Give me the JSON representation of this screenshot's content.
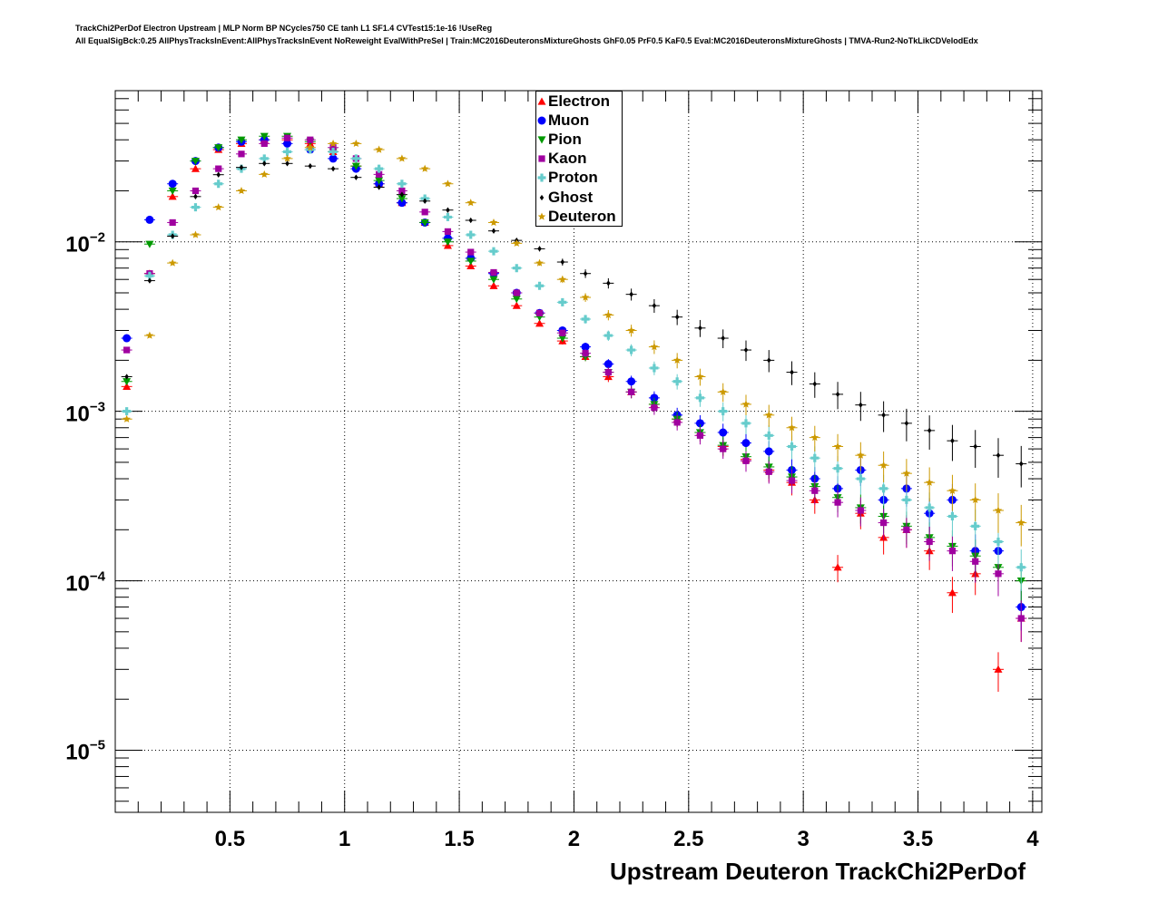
{
  "title_line1": "TrackChi2PerDof Electron Upstream | MLP Norm BP NCycles750 CE tanh L1 SF1.4 CVTest15:1e-16 !UseReg",
  "title_line2": "All EqualSigBck:0.25 AllPhysTracksInEvent:AllPhysTracksInEvent NoReweight EvalWithPreSel | Train:MC2016DeuteronsMixtureGhosts GhF0.05 PrF0.5 KaF0.5 Eval:MC2016DeuteronsMixtureGhosts | TMVA-Run2-NoTkLikCDVelodEdx",
  "chart_data": {
    "type": "scatter",
    "xlabel": "Upstream Deuteron TrackChi2PerDof",
    "ylabel": "",
    "xlim": [
      0,
      4.04
    ],
    "ylim": [
      4.3e-06,
      0.078
    ],
    "yscale": "log",
    "grid": true,
    "legend_position": "top-center",
    "x_ticks": [
      "0.5",
      "1",
      "1.5",
      "2",
      "2.5",
      "3",
      "3.5",
      "4"
    ],
    "x_tick_values": [
      0.5,
      1,
      1.5,
      2,
      2.5,
      3,
      3.5,
      4
    ],
    "y_ticks": [
      {
        "base": "10",
        "exp": "−2",
        "value": 0.01
      },
      {
        "base": "10",
        "exp": "−3",
        "value": 0.001
      },
      {
        "base": "10",
        "exp": "−4",
        "value": 0.0001
      },
      {
        "base": "10",
        "exp": "−5",
        "value": 1e-05
      }
    ],
    "x": [
      0.05,
      0.15,
      0.25,
      0.35,
      0.45,
      0.55,
      0.65,
      0.75,
      0.85,
      0.95,
      1.05,
      1.15,
      1.25,
      1.35,
      1.45,
      1.55,
      1.65,
      1.75,
      1.85,
      1.95,
      2.05,
      2.15,
      2.25,
      2.35,
      2.45,
      2.55,
      2.65,
      2.75,
      2.85,
      2.95,
      3.05,
      3.15,
      3.25,
      3.35,
      3.45,
      3.55,
      3.65,
      3.75,
      3.85,
      3.95
    ],
    "series": [
      {
        "name": "Electron",
        "color": "#ff0000",
        "marker": "triangle-up",
        "values": [
          0.0014,
          0.0065,
          0.0185,
          0.027,
          0.035,
          0.038,
          0.04,
          0.04,
          0.038,
          0.034,
          0.028,
          0.022,
          0.017,
          0.013,
          0.0095,
          0.0072,
          0.0055,
          0.0042,
          0.0033,
          0.0026,
          0.0021,
          0.0016,
          0.0013,
          0.0011,
          0.0009,
          0.00075,
          0.00062,
          0.00052,
          0.00045,
          0.00038,
          0.0003,
          0.00012,
          0.00025,
          0.00018,
          0.0002,
          0.00015,
          8.5e-05,
          0.00011,
          3e-05,
          6e-05
        ]
      },
      {
        "name": "Muon",
        "color": "#0000ff",
        "marker": "circle",
        "values": [
          0.0027,
          0.0135,
          0.022,
          0.03,
          0.036,
          0.039,
          0.04,
          0.038,
          0.035,
          0.031,
          0.027,
          0.022,
          0.017,
          0.013,
          0.0105,
          0.008,
          0.0065,
          0.005,
          0.0038,
          0.003,
          0.0024,
          0.0019,
          0.0015,
          0.0012,
          0.00095,
          0.00085,
          0.00075,
          0.00065,
          0.00058,
          0.00045,
          0.0004,
          0.00035,
          0.00045,
          0.0003,
          0.00035,
          0.00025,
          0.0003,
          0.00015,
          0.00015,
          7e-05
        ]
      },
      {
        "name": "Pion",
        "color": "#009900",
        "marker": "triangle-down",
        "values": [
          0.0015,
          0.0097,
          0.02,
          0.03,
          0.036,
          0.04,
          0.042,
          0.042,
          0.039,
          0.034,
          0.028,
          0.023,
          0.018,
          0.013,
          0.01,
          0.0077,
          0.006,
          0.0046,
          0.0036,
          0.0027,
          0.0021,
          0.0017,
          0.0013,
          0.0011,
          0.0009,
          0.00075,
          0.00063,
          0.00054,
          0.00047,
          0.00041,
          0.00036,
          0.00031,
          0.00027,
          0.00024,
          0.00021,
          0.00018,
          0.00016,
          0.00014,
          0.00012,
          0.0001
        ]
      },
      {
        "name": "Kaon",
        "color": "#a000a0",
        "marker": "square",
        "values": [
          0.0023,
          0.0065,
          0.013,
          0.02,
          0.027,
          0.033,
          0.038,
          0.041,
          0.04,
          0.036,
          0.031,
          0.025,
          0.02,
          0.015,
          0.0115,
          0.0087,
          0.0066,
          0.005,
          0.0038,
          0.0029,
          0.0022,
          0.0017,
          0.0013,
          0.00105,
          0.00086,
          0.00072,
          0.0006,
          0.00051,
          0.00044,
          0.00039,
          0.00034,
          0.00029,
          0.00026,
          0.00022,
          0.0002,
          0.00017,
          0.00015,
          0.00013,
          0.00011,
          6e-05
        ]
      },
      {
        "name": "Proton",
        "color": "#66cccc",
        "marker": "cross",
        "values": [
          0.001,
          0.0063,
          0.011,
          0.016,
          0.022,
          0.027,
          0.031,
          0.034,
          0.035,
          0.034,
          0.031,
          0.027,
          0.022,
          0.018,
          0.014,
          0.011,
          0.0088,
          0.007,
          0.0055,
          0.0044,
          0.0035,
          0.0028,
          0.0023,
          0.0018,
          0.0015,
          0.0012,
          0.001,
          0.00085,
          0.00072,
          0.00062,
          0.00053,
          0.00046,
          0.0004,
          0.00035,
          0.0003,
          0.00027,
          0.00024,
          0.00021,
          0.00017,
          0.00012
        ]
      },
      {
        "name": "Ghost",
        "color": "#000000",
        "marker": "diamond",
        "values": [
          0.0016,
          0.0059,
          0.0108,
          0.0185,
          0.0249,
          0.0275,
          0.029,
          0.029,
          0.028,
          0.027,
          0.024,
          0.021,
          0.019,
          0.0174,
          0.0154,
          0.0134,
          0.0116,
          0.0102,
          0.0091,
          0.0076,
          0.0065,
          0.0057,
          0.0049,
          0.0042,
          0.0036,
          0.0031,
          0.0027,
          0.0023,
          0.002,
          0.0017,
          0.00145,
          0.00126,
          0.00109,
          0.00095,
          0.00085,
          0.00077,
          0.00067,
          0.00062,
          0.00055,
          0.00049
        ]
      },
      {
        "name": "Deuteron",
        "color": "#cc9900",
        "marker": "star",
        "values": [
          0.0009,
          0.0028,
          0.0075,
          0.011,
          0.016,
          0.02,
          0.025,
          0.031,
          0.036,
          0.038,
          0.038,
          0.035,
          0.031,
          0.027,
          0.022,
          0.017,
          0.013,
          0.0098,
          0.0075,
          0.006,
          0.0047,
          0.0037,
          0.003,
          0.0024,
          0.002,
          0.0016,
          0.0013,
          0.0011,
          0.00095,
          0.0008,
          0.0007,
          0.00062,
          0.00055,
          0.00048,
          0.00043,
          0.00038,
          0.00034,
          0.0003,
          0.00026,
          0.00022
        ]
      }
    ]
  }
}
